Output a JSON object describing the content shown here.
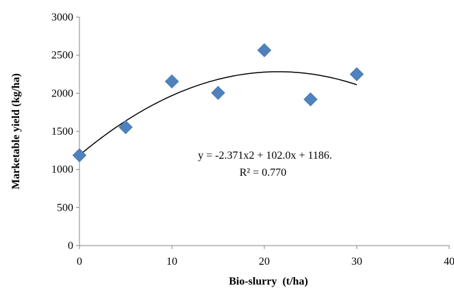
{
  "chart_data": {
    "type": "scatter",
    "xlabel": "Bio-slurry  (t/ha)",
    "ylabel": "Marketable yield (kg/ha)",
    "xlim": [
      0,
      40
    ],
    "ylim": [
      0,
      3000
    ],
    "x_ticks": [
      "0",
      "10",
      "20",
      "30",
      "40"
    ],
    "y_ticks": [
      "0",
      "500",
      "1000",
      "1500",
      "2000",
      "2500",
      "3000"
    ],
    "grid": false,
    "marker": "diamond",
    "marker_color": "#4f81bd",
    "series": [
      {
        "x": [
          0,
          5,
          10,
          15,
          20,
          25,
          30
        ],
        "y": [
          1186,
          1555,
          2155,
          2005,
          2565,
          1920,
          2250
        ]
      }
    ],
    "trendline": {
      "type": "polynomial",
      "order": 2,
      "coefficients": [
        -2.371,
        102.0,
        1186
      ],
      "x_range": [
        0,
        30
      ],
      "color": "#000000"
    },
    "annotations": [
      "y = -2.371x2 + 102.0x + 1186.",
      "R² = 0.770"
    ]
  }
}
